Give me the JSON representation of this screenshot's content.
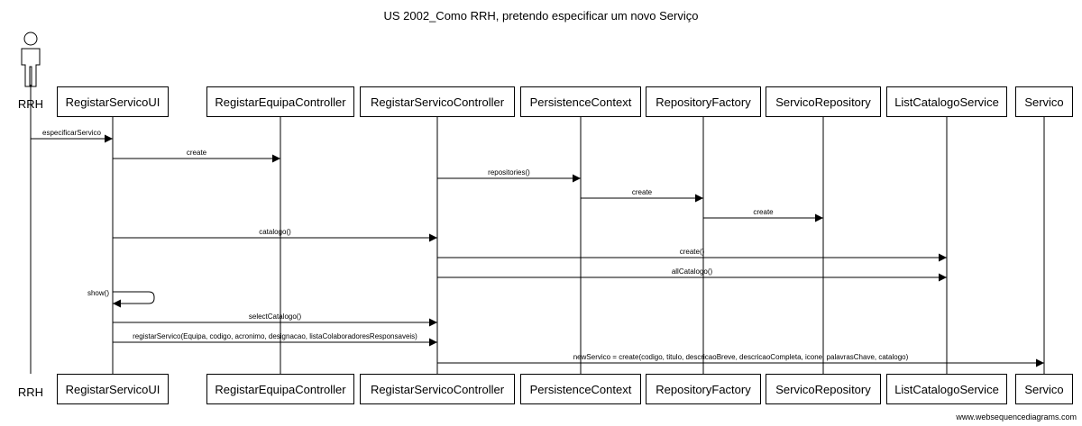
{
  "title": "US 2002_Como RRH, pretendo especificar um novo Serviço",
  "footer": "www.websequencediagrams.com",
  "actor": {
    "label": "RRH",
    "icon": "stick-figure-icon"
  },
  "participants": [
    "RegistarServicoUI",
    "RegistarEquipaController",
    "RegistarServicoController",
    "PersistenceContext",
    "RepositoryFactory",
    "ServicoRepository",
    "ListCatalogoService",
    "Servico"
  ],
  "messages": [
    {
      "from": "RRH",
      "to": "RegistarServicoUI",
      "label": "especificarServico"
    },
    {
      "from": "RegistarServicoUI",
      "to": "RegistarEquipaController",
      "label": "create"
    },
    {
      "from": "RegistarServicoController",
      "to": "PersistenceContext",
      "label": "repositories()"
    },
    {
      "from": "PersistenceContext",
      "to": "RepositoryFactory",
      "label": "create"
    },
    {
      "from": "RepositoryFactory",
      "to": "ServicoRepository",
      "label": "create"
    },
    {
      "from": "RegistarServicoUI",
      "to": "RegistarServicoController",
      "label": "catalogo()"
    },
    {
      "from": "RegistarServicoController",
      "to": "ListCatalogoService",
      "label": "create()"
    },
    {
      "from": "RegistarServicoController",
      "to": "ListCatalogoService",
      "label": "allCatalogo()"
    },
    {
      "from": "RegistarServicoUI",
      "to": "RegistarServicoUI",
      "label": "show()"
    },
    {
      "from": "RegistarServicoUI",
      "to": "RegistarServicoController",
      "label": "selectCatalogo()"
    },
    {
      "from": "RegistarServicoUI",
      "to": "RegistarServicoController",
      "label": "registarServico(Equipa, codigo, acronimo, designacao, listaColaboradoresResponsaveis)"
    },
    {
      "from": "RegistarServicoController",
      "to": "Servico",
      "label": "newServico = create(codigo, titulo, descricaoBreve, descricaoCompleta, icone, palavrasChave, catalogo)"
    }
  ]
}
